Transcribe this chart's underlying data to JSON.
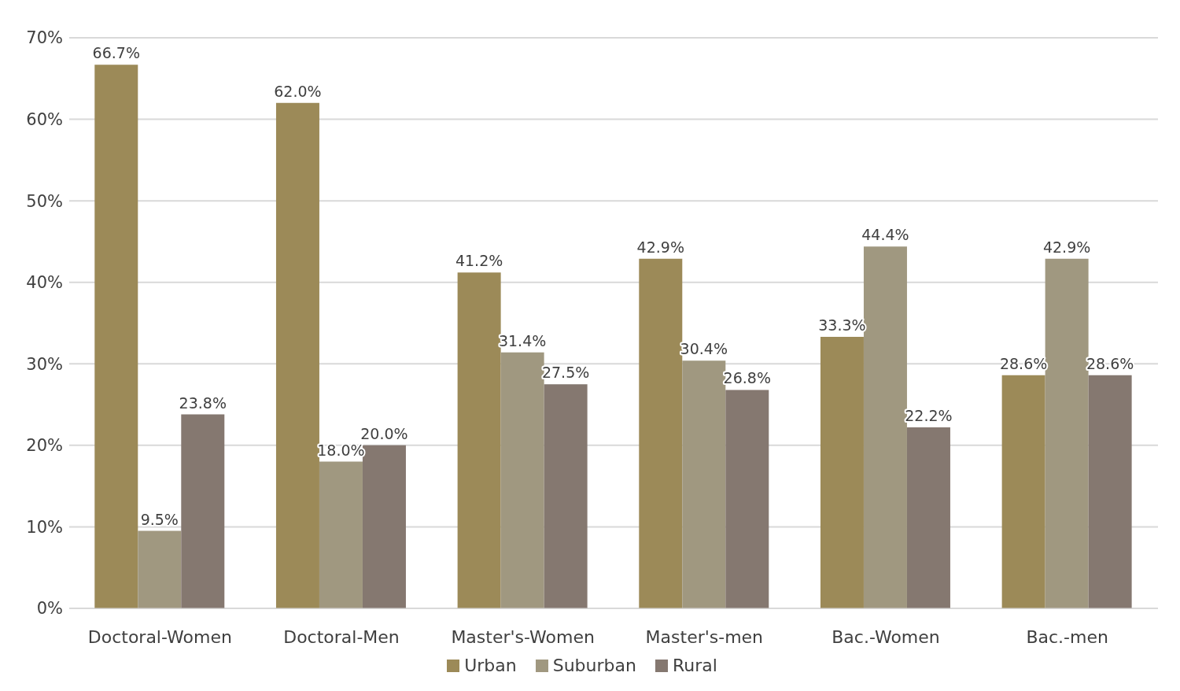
{
  "chart_data": {
    "type": "bar",
    "categories": [
      "Doctoral-Women",
      "Doctoral-Men",
      "Master's-Women",
      "Master's-men",
      "Bac.-Women",
      "Bac.-men"
    ],
    "series": [
      {
        "name": "Urban",
        "color": "#9c8a58",
        "values": [
          66.7,
          62.0,
          41.2,
          42.9,
          33.3,
          28.6
        ],
        "value_labels": [
          "66.7%",
          "62.0%",
          "41.2%",
          "42.9%",
          "33.3%",
          "28.6%"
        ]
      },
      {
        "name": "Suburban",
        "color": "#a09880",
        "values": [
          9.5,
          18.0,
          31.4,
          30.4,
          44.4,
          42.9
        ],
        "value_labels": [
          "9.5%",
          "18.0%",
          "31.4%",
          "30.4%",
          "44.4%",
          "42.9%"
        ]
      },
      {
        "name": "Rural",
        "color": "#857870",
        "values": [
          23.8,
          20.0,
          27.5,
          26.8,
          22.2,
          28.6
        ],
        "value_labels": [
          "23.8%",
          "20.0%",
          "27.5%",
          "26.8%",
          "22.2%",
          "28.6%"
        ]
      }
    ],
    "ylim": [
      0,
      70
    ],
    "yticks": [
      {
        "value": 0,
        "label": "0%"
      },
      {
        "value": 10,
        "label": "10%"
      },
      {
        "value": 20,
        "label": "20%"
      },
      {
        "value": 30,
        "label": "30%"
      },
      {
        "value": 40,
        "label": "40%"
      },
      {
        "value": 50,
        "label": "50%"
      },
      {
        "value": 60,
        "label": "60%"
      },
      {
        "value": 70,
        "label": "70%"
      }
    ],
    "grid": "y",
    "legend": "bottom"
  }
}
